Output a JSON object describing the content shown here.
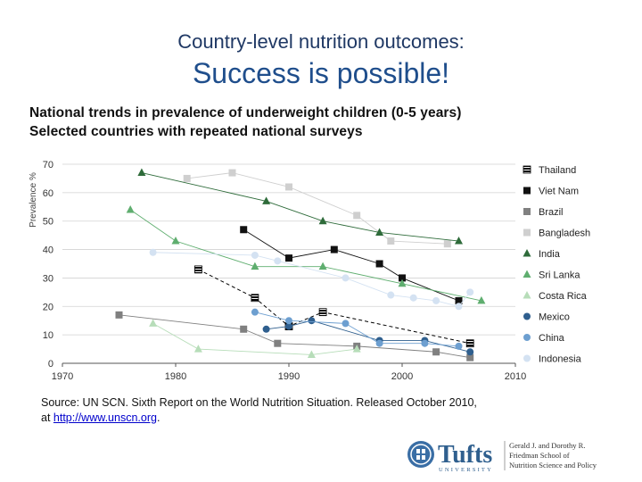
{
  "header": {
    "subtitle": "Country-level nutrition outcomes:",
    "title": "Success is possible!",
    "line1": "National trends in prevalence of underweight children (0-5 years)",
    "line2": "Selected countries with repeated national surveys"
  },
  "source": {
    "line1": "Source: UN SCN. Sixth Report on the World Nutrition Situation. Released October 2010,",
    "prefix": "at ",
    "link": "http://www.unscn.org",
    "suffix": "."
  },
  "logo": {
    "wordmark": "Tufts",
    "university": "UNIVERSITY",
    "school_line1": "Gerald J. and Dorothy R.",
    "school_line2": "Friedman School of",
    "school_line3": "Nutrition Science and Policy"
  },
  "colors": {
    "title": "#1f4e8c",
    "thailand": "#000000",
    "vietnam": "#111111",
    "brazil": "#808080",
    "bangladesh": "#cfcfcf",
    "india": "#2e6b3a",
    "srilanka": "#5fae6f",
    "costarica": "#b7ddb9",
    "mexico": "#2f5f8e",
    "china": "#6d9fd0",
    "indonesia": "#d4e2f2"
  },
  "chart_data": {
    "type": "line",
    "title": "",
    "xlabel": "",
    "ylabel": "Prevalence %",
    "xlim": [
      1970,
      2010
    ],
    "ylim": [
      0,
      70
    ],
    "x_ticks": [
      1970,
      1980,
      1990,
      2000,
      2010
    ],
    "y_ticks": [
      0,
      10,
      20,
      30,
      40,
      50,
      60,
      70
    ],
    "legend_position": "right",
    "series": [
      {
        "name": "Thailand",
        "key": "thailand",
        "marker": "hatched-square",
        "dash": "dashed",
        "points": [
          [
            1982,
            33
          ],
          [
            1987,
            23
          ],
          [
            1990,
            13
          ],
          [
            1993,
            18
          ],
          [
            2006,
            7
          ]
        ]
      },
      {
        "name": "Viet Nam",
        "key": "vietnam",
        "marker": "square",
        "dash": "solid",
        "points": [
          [
            1986,
            47
          ],
          [
            1990,
            37
          ],
          [
            1994,
            40
          ],
          [
            1998,
            35
          ],
          [
            2000,
            30
          ],
          [
            2005,
            22
          ]
        ]
      },
      {
        "name": "Brazil",
        "key": "brazil",
        "marker": "square",
        "dash": "solid",
        "points": [
          [
            1975,
            17
          ],
          [
            1986,
            12
          ],
          [
            1989,
            7
          ],
          [
            1996,
            6
          ],
          [
            2003,
            4
          ],
          [
            2006,
            2
          ]
        ]
      },
      {
        "name": "Bangladesh",
        "key": "bangladesh",
        "marker": "square",
        "dash": "solid",
        "points": [
          [
            1981,
            65
          ],
          [
            1985,
            67
          ],
          [
            1990,
            62
          ],
          [
            1996,
            52
          ],
          [
            1999,
            43
          ],
          [
            2004,
            42
          ]
        ]
      },
      {
        "name": "India",
        "key": "india",
        "marker": "triangle",
        "dash": "solid",
        "points": [
          [
            1977,
            67
          ],
          [
            1988,
            57
          ],
          [
            1993,
            50
          ],
          [
            1998,
            46
          ],
          [
            2005,
            43
          ]
        ]
      },
      {
        "name": "Sri Lanka",
        "key": "srilanka",
        "marker": "triangle",
        "dash": "solid",
        "points": [
          [
            1976,
            54
          ],
          [
            1980,
            43
          ],
          [
            1987,
            34
          ],
          [
            1993,
            34
          ],
          [
            2000,
            28
          ],
          [
            2007,
            22
          ]
        ]
      },
      {
        "name": "Costa Rica",
        "key": "costarica",
        "marker": "triangle",
        "dash": "solid",
        "points": [
          [
            1978,
            14
          ],
          [
            1982,
            5
          ],
          [
            1992,
            3
          ],
          [
            1996,
            5
          ]
        ]
      },
      {
        "name": "Mexico",
        "key": "mexico",
        "marker": "circle",
        "dash": "solid",
        "points": [
          [
            1988,
            12
          ],
          [
            1990,
            13
          ],
          [
            1992,
            15
          ],
          [
            1998,
            8
          ],
          [
            2002,
            8
          ],
          [
            2006,
            4
          ]
        ]
      },
      {
        "name": "China",
        "key": "china",
        "marker": "circle",
        "dash": "solid",
        "points": [
          [
            1987,
            18
          ],
          [
            1990,
            15
          ],
          [
            1995,
            14
          ],
          [
            1998,
            7
          ],
          [
            2002,
            7
          ],
          [
            2005,
            6
          ]
        ]
      },
      {
        "name": "Indonesia",
        "key": "indonesia",
        "marker": "circle",
        "dash": "solid",
        "points": [
          [
            1978,
            39
          ],
          [
            1987,
            38
          ],
          [
            1989,
            36
          ],
          [
            1995,
            30
          ],
          [
            1999,
            24
          ],
          [
            2001,
            23
          ],
          [
            2003,
            22
          ],
          [
            2005,
            20
          ],
          [
            2006,
            25
          ]
        ]
      }
    ]
  }
}
